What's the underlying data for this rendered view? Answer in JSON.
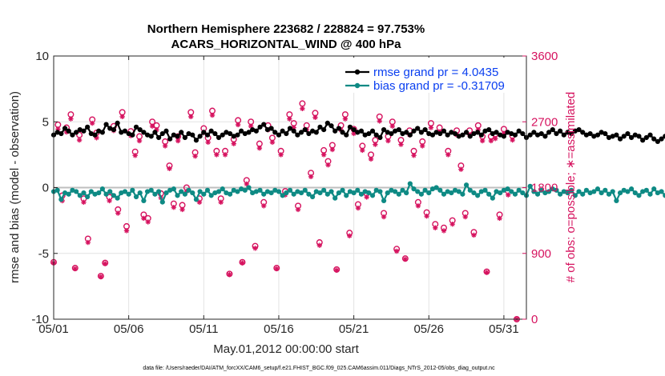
{
  "chart_data": {
    "type": "line",
    "title": "Northern Hemisphere 223682 / 228824 = 97.753%",
    "subtitle": "ACARS_HORIZONTAL_WIND @ 400 hPa",
    "xlabel": "May.01,2012 00:00:00 start",
    "ylabel_left": "rmse and bias (model - observation)",
    "ylabel_right": "# of obs: o=possible; ∗=assimilated",
    "footnote": "data file: /Users/raeder/DAI/ATM_forcXX/CAM6_setup/f.e21.FHIST_BGC.f09_025.CAM6assim.011/Diags_NTrS_2012-05/obs_diag_output.nc",
    "xlim": [
      0,
      31.5
    ],
    "ylim_left": [
      -10,
      10
    ],
    "ylim_right": [
      0,
      3600
    ],
    "x_ticks": [
      0,
      5,
      10,
      15,
      20,
      25,
      30
    ],
    "x_tick_labels": [
      "05/01",
      "05/06",
      "05/11",
      "05/16",
      "05/21",
      "05/26",
      "05/31"
    ],
    "y_left_ticks": [
      10,
      5,
      0,
      -5,
      -10
    ],
    "y_left_tick_labels": [
      "10",
      "5",
      "0",
      "-5",
      "-10"
    ],
    "y_right_ticks": [
      3600,
      2700,
      1800,
      900,
      0
    ],
    "y_right_tick_labels": [
      "3600",
      "2700",
      "1800",
      "900",
      "0"
    ],
    "grid": true,
    "legend": {
      "position": "top-right",
      "entries": [
        "rmse grand pr = 4.0435",
        "bias grand pr = -0.31709"
      ]
    },
    "colors": {
      "rmse": "#000000",
      "bias": "#0e8a84",
      "obs": "#d6135f",
      "grid": "#e3e3e3",
      "zero_line": "#bfbfbf",
      "legend_text": "#0a3ff0"
    },
    "step_days": 0.25,
    "series": [
      {
        "name": "rmse",
        "axis": "left",
        "values": [
          4.0,
          4.2,
          4.1,
          4.5,
          4.3,
          4.0,
          4.2,
          4.4,
          4.3,
          4.6,
          4.1,
          4.0,
          4.3,
          4.2,
          4.8,
          4.5,
          4.4,
          4.9,
          4.2,
          4.3,
          4.1,
          4.0,
          4.6,
          4.4,
          4.2,
          4.0,
          3.9,
          4.2,
          3.8,
          4.1,
          4.3,
          3.7,
          4.0,
          3.9,
          4.2,
          3.8,
          4.1,
          4.0,
          3.6,
          3.9,
          4.2,
          4.0,
          4.3,
          4.1,
          3.8,
          4.0,
          4.2,
          4.1,
          3.9,
          4.0,
          4.3,
          4.1,
          4.2,
          4.4,
          4.3,
          4.6,
          4.8,
          4.4,
          4.5,
          4.2,
          4.0,
          4.3,
          4.1,
          4.5,
          4.3,
          4.0,
          4.2,
          4.4,
          4.1,
          4.3,
          4.2,
          4.6,
          4.4,
          4.9,
          4.7,
          4.3,
          4.5,
          4.2,
          4.0,
          4.6,
          4.4,
          4.2,
          4.3,
          4.0,
          4.1,
          4.3,
          4.0,
          3.8,
          4.4,
          4.2,
          4.1,
          4.3,
          4.4,
          4.1,
          4.2,
          4.0,
          4.3,
          4.5,
          4.2,
          4.4,
          4.1,
          4.0,
          4.2,
          4.1,
          4.3,
          4.0,
          4.2,
          4.1,
          3.9,
          4.0,
          4.2,
          3.9,
          4.1,
          4.2,
          4.0,
          4.3,
          4.4,
          4.1,
          4.2,
          4.0,
          3.9,
          4.2,
          4.1,
          4.0,
          4.3,
          4.1,
          3.8,
          4.0,
          4.2,
          4.0,
          4.1,
          3.9,
          4.2,
          4.4,
          4.1,
          4.3,
          4.0,
          4.2,
          4.1,
          4.3,
          4.4,
          4.2,
          4.0,
          4.1,
          3.9,
          4.0,
          4.2,
          4.1,
          3.8,
          3.9,
          4.0,
          3.7,
          3.9,
          4.1,
          3.8,
          4.0,
          3.9,
          3.6,
          3.8,
          4.0,
          3.7,
          3.5,
          3.7,
          3.9,
          3.6,
          3.8,
          3.7,
          3.9,
          4.1,
          3.8,
          3.9,
          3.7,
          4.0,
          3.8,
          3.6,
          3.9,
          3.7,
          3.8,
          4.0,
          3.9,
          4.1,
          3.8,
          3.7,
          3.9,
          4.1,
          4.0,
          3.8,
          3.9,
          4.0,
          4.2,
          4.1,
          4.3,
          4.0,
          4.2,
          4.4,
          4.1,
          4.0,
          4.3,
          4.4,
          4.2,
          4.6,
          4.3,
          4.1,
          4.0,
          4.2,
          4.4,
          4.1,
          4.3,
          4.6,
          4.5,
          4.2,
          4.4,
          4.1,
          4.0,
          4.3,
          4.2,
          4.5,
          4.3,
          4.4,
          4.7,
          4.9,
          4.8,
          4.6,
          4.4,
          4.6,
          4.3,
          4.1,
          3.8,
          3.6,
          3.5,
          3.6,
          3.4,
          3.5,
          3.6,
          3.5,
          3.7,
          3.6,
          3.8,
          3.9,
          4.1,
          4.0,
          4.2,
          4.3,
          4.2,
          4.1,
          4.4,
          4.3,
          4.2,
          4.0,
          4.1,
          4.3,
          4.2,
          4.4,
          4.3,
          4.1,
          4.0,
          4.2,
          4.4,
          4.3,
          4.1
        ]
      },
      {
        "name": "bias",
        "axis": "left",
        "values": [
          -0.3,
          -0.2,
          -0.9,
          -0.4,
          -0.5,
          -0.2,
          -0.3,
          -0.6,
          -0.4,
          -0.7,
          -0.3,
          -0.5,
          -0.4,
          -0.1,
          -0.5,
          -0.3,
          -0.6,
          -0.8,
          -0.4,
          -0.3,
          -0.5,
          -0.2,
          -0.7,
          -0.4,
          -1.0,
          -0.3,
          -0.2,
          -0.5,
          -0.3,
          -1.1,
          -0.4,
          -0.2,
          -0.1,
          -0.6,
          -0.3,
          -0.5,
          -0.2,
          -0.4,
          -0.9,
          -0.3,
          -0.5,
          -0.2,
          -0.6,
          -0.4,
          -0.3,
          -0.1,
          -0.4,
          -0.5,
          -0.2,
          -0.3,
          -0.1,
          -0.2,
          0.0,
          -0.4,
          -0.3,
          -0.2,
          -0.5,
          -0.3,
          -0.4,
          -0.2,
          -0.3,
          -0.6,
          -0.4,
          -0.2,
          -0.5,
          -0.3,
          -0.4,
          -0.2,
          -0.5,
          -0.7,
          -0.3,
          -0.4,
          -0.2,
          -0.5,
          -0.3,
          -0.8,
          -0.4,
          -0.2,
          -0.6,
          -0.3,
          -0.4,
          -0.2,
          -0.5,
          -0.3,
          -0.4,
          -0.6,
          -0.2,
          -0.3,
          -1.0,
          -0.4,
          -0.2,
          -0.3,
          -0.5,
          -0.2,
          -0.4,
          0.3,
          -0.1,
          -0.3,
          -0.5,
          -0.2,
          -0.4,
          -0.1,
          0.0,
          -0.2,
          -0.5,
          -0.3,
          -0.4,
          -0.2,
          -0.3,
          -0.5,
          0.2,
          -0.2,
          -0.4,
          -0.6,
          -0.3,
          -0.2,
          -0.5,
          -0.8,
          -0.3,
          -0.4,
          -0.2,
          -0.1,
          -0.3,
          -0.5,
          -0.2,
          -0.4,
          -0.6,
          0.1,
          -0.3,
          -0.5,
          -0.2,
          -0.4,
          -0.3,
          -0.1,
          -0.2,
          -0.5,
          -0.3,
          -0.4,
          -0.2,
          -0.6,
          -0.3,
          -0.5,
          -0.2,
          -0.4,
          -0.3,
          -0.1,
          -0.4,
          -0.2,
          -0.5,
          -0.3,
          -1.0,
          -0.4,
          -0.2,
          -0.3,
          -0.1,
          -0.4,
          -0.6,
          -0.3,
          -0.2,
          -0.5,
          -0.1,
          -0.4,
          -0.3,
          -0.6,
          -0.2,
          -0.4,
          -0.1,
          -0.3,
          -0.5,
          -0.2,
          -0.4,
          -0.3,
          -0.6,
          -0.5,
          -0.8,
          -0.3,
          -0.4,
          -0.2,
          -0.5,
          -0.3,
          -0.4,
          -0.6,
          -0.3,
          -0.5,
          -0.4,
          -0.7,
          -0.3,
          -1.0,
          -0.5,
          -0.4,
          -1.2,
          -0.5,
          -0.3,
          -0.6,
          -0.4,
          -0.2,
          -0.5,
          -0.3,
          -0.4,
          -0.6,
          -0.3,
          -0.5,
          -0.4,
          -0.2,
          -0.6,
          -0.3,
          -0.4,
          -0.5,
          -0.3,
          -0.2,
          -0.6,
          -0.4,
          -0.7,
          -0.3,
          -0.5,
          -0.2,
          -0.4,
          -0.3,
          0.1,
          -0.2,
          -0.5,
          -0.3,
          -0.4,
          -0.6,
          -0.2,
          -0.3,
          -0.5,
          -0.1,
          0.0,
          -0.2,
          -0.4,
          -0.3,
          -0.5,
          -0.2,
          -0.4,
          -0.3,
          -0.2,
          0.2,
          -0.1,
          -0.4,
          -0.2,
          -0.3,
          -0.5,
          0.6,
          -0.2,
          -0.4,
          0.0,
          -0.3,
          -0.5,
          0.5,
          -0.2,
          -0.4,
          0.0,
          -0.4,
          -0.5,
          -0.3,
          -0.2,
          -0.4,
          -0.5,
          -0.3
        ]
      },
      {
        "name": "obs possible (o)",
        "axis": "right",
        "step_days": 1,
        "values": [
          780,
          2660,
          1690,
          2620,
          2800,
          700,
          2520,
          1650,
          1100,
          2730,
          2550,
          590,
          770,
          1670,
          2640,
          1500,
          2830,
          1270,
          2570,
          2290,
          2500,
          1430,
          1380,
          2700,
          2650,
          1720,
          2430,
          2100,
          1580,
          2500,
          1560,
          1800,
          2830,
          2280,
          1650,
          2610,
          2480,
          2850,
          2300,
          1650,
          2300,
          620,
          2460,
          2720,
          780,
          1900,
          2700,
          1000,
          2400,
          1600,
          2650,
          2480,
          700,
          2300,
          1750,
          2800,
          2680,
          1550,
          2950,
          2650,
          2000,
          2820,
          1050,
          2310,
          2160,
          2380,
          680,
          2650,
          2800,
          1180,
          2600,
          1570,
          2370,
          1720,
          2250,
          2450,
          2770,
          1450,
          2500,
          2700,
          960,
          2450,
          830,
          2580,
          2300,
          1600,
          2430,
          1460,
          2680,
          1300,
          2620,
          1250,
          2300,
          1350,
          2580,
          2100,
          1450,
          2580,
          1190,
          2650,
          2500,
          650,
          2500,
          2530,
          1430,
          2600,
          1750,
          2510,
          0
        ]
      },
      {
        "name": "obs assimilated (∗)",
        "axis": "right",
        "step_days": 1,
        "values": [
          770,
          2600,
          1620,
          2560,
          2740,
          690,
          2450,
          1600,
          1050,
          2680,
          2480,
          580,
          760,
          1620,
          2580,
          1450,
          2770,
          1210,
          2510,
          2240,
          2440,
          1380,
          1330,
          2640,
          2590,
          1660,
          2370,
          2060,
          1530,
          2440,
          1500,
          1750,
          2770,
          2230,
          1600,
          2550,
          2420,
          2790,
          2250,
          1600,
          2250,
          610,
          2400,
          2660,
          770,
          1850,
          2640,
          970,
          2340,
          1550,
          2590,
          2420,
          690,
          2250,
          1700,
          2740,
          2620,
          1500,
          2880,
          2590,
          1950,
          2760,
          1010,
          2250,
          2110,
          2320,
          670,
          2590,
          2740,
          1140,
          2540,
          1520,
          2310,
          1670,
          2190,
          2390,
          2710,
          1400,
          2440,
          2640,
          930,
          2390,
          820,
          2520,
          2240,
          1550,
          2370,
          1410,
          2620,
          1250,
          2560,
          1210,
          2250,
          1300,
          2520,
          2050,
          1400,
          2520,
          1150,
          2590,
          2440,
          640,
          2440,
          2470,
          1380,
          2540,
          1700,
          2450,
          0
        ]
      }
    ]
  }
}
